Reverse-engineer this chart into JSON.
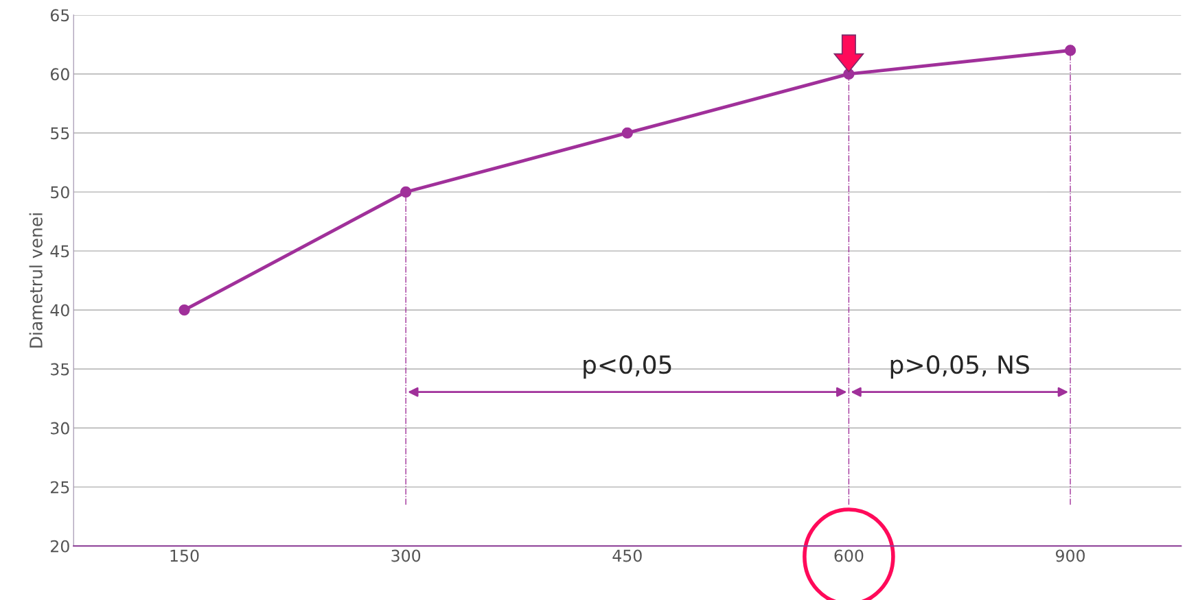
{
  "chart_data": {
    "type": "line",
    "ylabel": "Diametrul venei",
    "categories": [
      "150",
      "300",
      "450",
      "600",
      "900"
    ],
    "series": [
      {
        "color": "#a0309a",
        "values": [
          40,
          50,
          55,
          60,
          62
        ]
      }
    ],
    "ylim": [
      20,
      65
    ],
    "yticks": [
      20,
      25,
      30,
      35,
      40,
      45,
      50,
      55,
      60,
      65
    ],
    "grid": "y",
    "marker": "circle",
    "line_style": "solid",
    "legend": false,
    "ref_lines": [
      {
        "axis": "x",
        "value": "300",
        "color": "#a0309a",
        "line_style": "dashdot"
      },
      {
        "axis": "x",
        "value": "600",
        "color": "#a0309a",
        "line_style": "dashdot"
      },
      {
        "axis": "x",
        "value": "900",
        "color": "#a0309a",
        "line_style": "dashdot"
      }
    ],
    "annotations": [
      "p<0,05",
      "p>0,05, NS"
    ]
  }
}
